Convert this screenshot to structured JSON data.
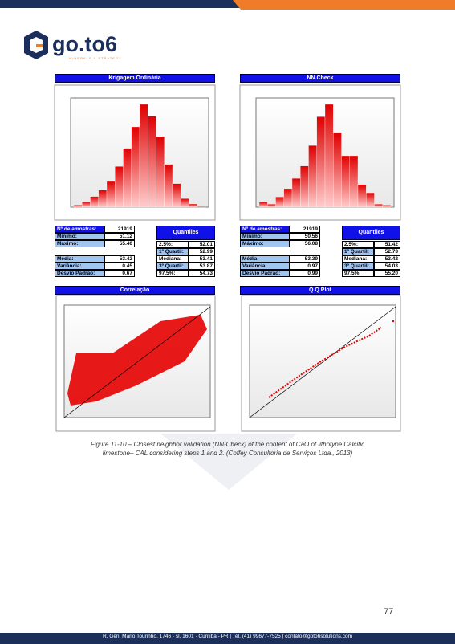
{
  "header": {
    "logo": "go.to6",
    "tagline": "MINERALS & STRATEGY"
  },
  "panels": [
    {
      "title": "Krigagem Ordinária",
      "histogram": {
        "values": [
          2,
          5,
          10,
          16,
          24,
          38,
          55,
          75,
          96,
          85,
          66,
          40,
          22,
          8,
          3,
          1
        ]
      },
      "stats": [
        [
          "Nº de amostras:",
          "21919"
        ],
        [
          "Mínimo:",
          "51.12"
        ],
        [
          "Máximo:",
          "55.40"
        ],
        [
          "Média:",
          "53.42"
        ],
        [
          "Variância:",
          "0.45"
        ],
        [
          "Desvio Padrão:",
          "0.67"
        ]
      ],
      "quantiles": {
        "title": "Quantiles",
        "rows": [
          [
            "2.5%:",
            "52.01"
          ],
          [
            "1º Quartil:",
            "52.99"
          ],
          [
            "Mediana:",
            "53.41"
          ],
          [
            "3º Quartil:",
            "53.87"
          ],
          [
            "97.5%:",
            "54.73"
          ]
        ]
      },
      "lower_title": "Correlação"
    },
    {
      "title": "NN.Check",
      "histogram": {
        "values": [
          5,
          3,
          10,
          18,
          28,
          40,
          60,
          88,
          100,
          72,
          50,
          50,
          22,
          14,
          3,
          2
        ]
      },
      "stats": [
        [
          "Nº de amostras:",
          "21919"
        ],
        [
          "Mínimo:",
          "50.56"
        ],
        [
          "Máximo:",
          "56.08"
        ],
        [
          "Média:",
          "53.39"
        ],
        [
          "Variância:",
          "0.97"
        ],
        [
          "Desvio Padrão:",
          "0.99"
        ]
      ],
      "quantiles": {
        "title": "Quantiles",
        "rows": [
          [
            "2.5%:",
            "51.42"
          ],
          [
            "1º Quartil:",
            "52.73"
          ],
          [
            "Mediana:",
            "53.42"
          ],
          [
            "3º Quartil:",
            "54.03"
          ],
          [
            "97.5%:",
            "55.20"
          ]
        ]
      },
      "lower_title": "Q.Q Plot"
    }
  ],
  "caption": [
    "Figure 11-10 – Closest neighbor validation (NN-Check) of the content of CaO of lithotype Calcitic",
    "limestone– CAL considering steps 1 and 2. (Coffey Consultoria de Serviços Ltda., 2013)"
  ],
  "page_number": "77",
  "footer": "R. Gen. Mário Tourinho, 1746 - sl. 1601 · Curitiba - PR | Tel. (41) 99677-7525 | contato@goto6solutions.com"
}
